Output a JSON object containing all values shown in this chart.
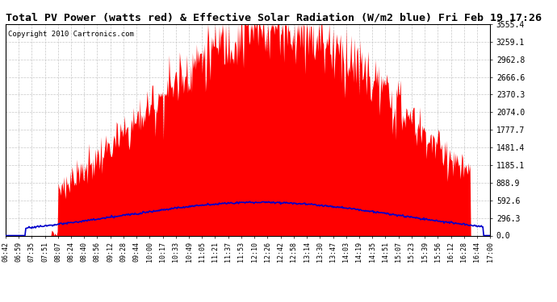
{
  "title": "Total PV Power (watts red) & Effective Solar Radiation (W/m2 blue) Fri Feb 19 17:26",
  "copyright": "Copyright 2010 Cartronics.com",
  "background_color": "#ffffff",
  "plot_bg_color": "#ffffff",
  "grid_color": "#c8c8c8",
  "title_fontsize": 9.5,
  "yticks": [
    0.0,
    296.3,
    592.6,
    888.9,
    1185.1,
    1481.4,
    1777.7,
    2074.0,
    2370.3,
    2666.6,
    2962.8,
    3259.1,
    3555.4
  ],
  "ylim": [
    0.0,
    3555.4
  ],
  "xtick_labels": [
    "06:42",
    "06:59",
    "07:35",
    "07:51",
    "08:07",
    "08:24",
    "08:40",
    "08:56",
    "09:12",
    "09:28",
    "09:44",
    "10:00",
    "10:17",
    "10:33",
    "10:49",
    "11:05",
    "11:21",
    "11:37",
    "11:53",
    "12:10",
    "12:26",
    "12:42",
    "12:58",
    "13:14",
    "13:30",
    "13:47",
    "14:03",
    "14:19",
    "14:35",
    "14:51",
    "15:07",
    "15:23",
    "15:39",
    "15:56",
    "16:12",
    "16:28",
    "16:44",
    "17:00"
  ],
  "pv_color": "#ff0000",
  "solar_color": "#0000cc",
  "pv_alpha": 1.0,
  "figsize": [
    6.9,
    3.75
  ],
  "dpi": 100
}
